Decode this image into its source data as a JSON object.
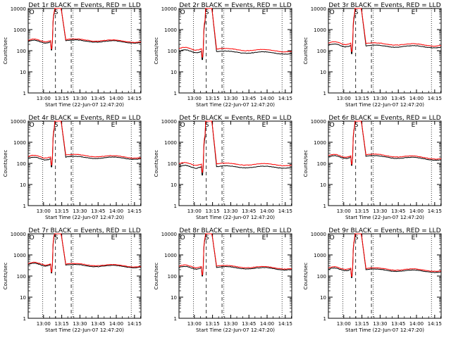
{
  "chart_data": [
    {
      "type": "line",
      "title": "Det 1r BLACK = Events, RED = LLD",
      "ylabel": "Counts/sec",
      "xlabel": "Start Time (22-Jun-07 12:47:20)",
      "xticks": [
        "13:00",
        "13:15",
        "13:30",
        "13:45",
        "14:00",
        "14:15"
      ],
      "yticks": [
        "1",
        "10",
        "100",
        "1000",
        "10000"
      ],
      "ylim": [
        1,
        10000
      ],
      "yscale": "log",
      "markers": [
        "O",
        "S",
        "E"
      ],
      "base_black": 300,
      "base_red": 340,
      "pre_black": 270,
      "pre_red": 310,
      "end_black": 250,
      "end_red": 270,
      "series": [
        {
          "name": "BLACK = Events",
          "color": "#000000"
        },
        {
          "name": "RED = LLD",
          "color": "#ff0000"
        }
      ]
    },
    {
      "type": "line",
      "title": "Det 2r BLACK = Events, RED = LLD",
      "ylabel": "Counts/sec",
      "xlabel": "Start Time (22-Jun-07 12:47:20)",
      "xticks": [
        "13:00",
        "13:15",
        "13:30",
        "13:45",
        "14:00",
        "14:15"
      ],
      "yticks": [
        "1",
        "10",
        "100",
        "1000",
        "10000"
      ],
      "ylim": [
        1,
        10000
      ],
      "yscale": "log",
      "markers": [
        "O",
        "S",
        "E"
      ],
      "base_black": 90,
      "base_red": 120,
      "pre_black": 95,
      "pre_red": 125,
      "end_black": 75,
      "end_red": 95,
      "series": [
        {
          "name": "BLACK = Events",
          "color": "#000000"
        },
        {
          "name": "RED = LLD",
          "color": "#ff0000"
        }
      ]
    },
    {
      "type": "line",
      "title": "Det 3r BLACK = Events, RED = LLD",
      "ylabel": "Counts/sec",
      "xlabel": "Start Time (22-Jun-07 12:47:20)",
      "xticks": [
        "13:00",
        "13:15",
        "13:30",
        "13:45",
        "14:00",
        "14:15"
      ],
      "yticks": [
        "1",
        "10",
        "100",
        "1000",
        "10000"
      ],
      "ylim": [
        1,
        10000
      ],
      "yscale": "log",
      "markers": [
        "O",
        "S",
        "E"
      ],
      "base_black": 170,
      "base_red": 220,
      "pre_black": 180,
      "pre_red": 230,
      "end_black": 150,
      "end_red": 180,
      "series": [
        {
          "name": "BLACK = Events",
          "color": "#000000"
        },
        {
          "name": "RED = LLD",
          "color": "#ff0000"
        }
      ]
    },
    {
      "type": "line",
      "title": "Det 4r BLACK = Events, RED = LLD",
      "ylabel": "Counts/sec",
      "xlabel": "Start Time (22-Jun-07 12:47:20)",
      "xticks": [
        "13:00",
        "13:15",
        "13:30",
        "13:45",
        "14:00",
        "14:15"
      ],
      "yticks": [
        "1",
        "10",
        "100",
        "1000",
        "10000"
      ],
      "ylim": [
        1,
        10000
      ],
      "yscale": "log",
      "markers": [
        "O",
        "S",
        "E"
      ],
      "base_black": 200,
      "base_red": 250,
      "pre_black": 170,
      "pre_red": 210,
      "end_black": 170,
      "end_red": 190,
      "series": [
        {
          "name": "BLACK = Events",
          "color": "#000000"
        },
        {
          "name": "RED = LLD",
          "color": "#ff0000"
        }
      ]
    },
    {
      "type": "line",
      "title": "Det 5r BLACK = Events, RED = LLD",
      "ylabel": "Counts/sec",
      "xlabel": "Start Time (22-Jun-07 12:47:20)",
      "xticks": [
        "13:00",
        "13:15",
        "13:30",
        "13:45",
        "14:00",
        "14:15"
      ],
      "yticks": [
        "1",
        "10",
        "100",
        "1000",
        "10000"
      ],
      "ylim": [
        1,
        10000
      ],
      "yscale": "log",
      "markers": [
        "O",
        "S",
        "E"
      ],
      "base_black": 70,
      "base_red": 95,
      "pre_black": 70,
      "pre_red": 95,
      "end_black": 65,
      "end_red": 85,
      "series": [
        {
          "name": "BLACK = Events",
          "color": "#000000"
        },
        {
          "name": "RED = LLD",
          "color": "#ff0000"
        }
      ]
    },
    {
      "type": "line",
      "title": "Det 6r BLACK = Events, RED = LLD",
      "ylabel": "Counts/sec",
      "xlabel": "Start Time (22-Jun-07 12:47:20)",
      "xticks": [
        "13:00",
        "13:15",
        "13:30",
        "13:45",
        "14:00",
        "14:15"
      ],
      "yticks": [
        "1",
        "10",
        "100",
        "1000",
        "10000"
      ],
      "ylim": [
        1,
        10000
      ],
      "yscale": "log",
      "markers": [
        "O",
        "S",
        "E"
      ],
      "base_black": 220,
      "base_red": 260,
      "pre_black": 200,
      "pre_red": 230,
      "end_black": 150,
      "end_red": 170,
      "series": [
        {
          "name": "BLACK = Events",
          "color": "#000000"
        },
        {
          "name": "RED = LLD",
          "color": "#ff0000"
        }
      ]
    },
    {
      "type": "line",
      "title": "Det 7r BLACK = Events, RED = LLD",
      "ylabel": "Counts/sec",
      "xlabel": "Start Time (22-Jun-07 12:47:20)",
      "xticks": [
        "13:00",
        "13:15",
        "13:30",
        "13:45",
        "14:00",
        "14:15"
      ],
      "yticks": [
        "1",
        "10",
        "100",
        "1000",
        "10000"
      ],
      "ylim": [
        1,
        10000
      ],
      "yscale": "log",
      "markers": [
        "O",
        "S",
        "E"
      ],
      "base_black": 330,
      "base_red": 370,
      "pre_black": 350,
      "pre_red": 390,
      "end_black": 270,
      "end_red": 290,
      "series": [
        {
          "name": "BLACK = Events",
          "color": "#000000"
        },
        {
          "name": "RED = LLD",
          "color": "#ff0000"
        }
      ]
    },
    {
      "type": "line",
      "title": "Det 8r BLACK = Events, RED = LLD",
      "ylabel": "Counts/sec",
      "xlabel": "Start Time (22-Jun-07 12:47:20)",
      "xticks": [
        "13:00",
        "13:15",
        "13:30",
        "13:45",
        "14:00",
        "14:15"
      ],
      "yticks": [
        "1",
        "10",
        "100",
        "1000",
        "10000"
      ],
      "ylim": [
        1,
        10000
      ],
      "yscale": "log",
      "markers": [
        "O",
        "S",
        "E"
      ],
      "base_black": 260,
      "base_red": 300,
      "pre_black": 250,
      "pre_red": 290,
      "end_black": 210,
      "end_red": 230,
      "series": [
        {
          "name": "BLACK = Events",
          "color": "#000000"
        },
        {
          "name": "RED = LLD",
          "color": "#ff0000"
        }
      ]
    },
    {
      "type": "line",
      "title": "Det 9r BLACK = Events, RED = LLD",
      "ylabel": "Counts/sec",
      "xlabel": "Start Time (22-Jun-07 12:47:20)",
      "xticks": [
        "13:00",
        "13:15",
        "13:30",
        "13:45",
        "14:00",
        "14:15"
      ],
      "yticks": [
        "1",
        "10",
        "100",
        "1000",
        "10000"
      ],
      "ylim": [
        1,
        10000
      ],
      "yscale": "log",
      "markers": [
        "O",
        "S",
        "E"
      ],
      "base_black": 200,
      "base_red": 230,
      "pre_black": 210,
      "pre_red": 240,
      "end_black": 160,
      "end_red": 180,
      "series": [
        {
          "name": "BLACK = Events",
          "color": "#000000"
        },
        {
          "name": "RED = LLD",
          "color": "#ff0000"
        }
      ]
    }
  ]
}
